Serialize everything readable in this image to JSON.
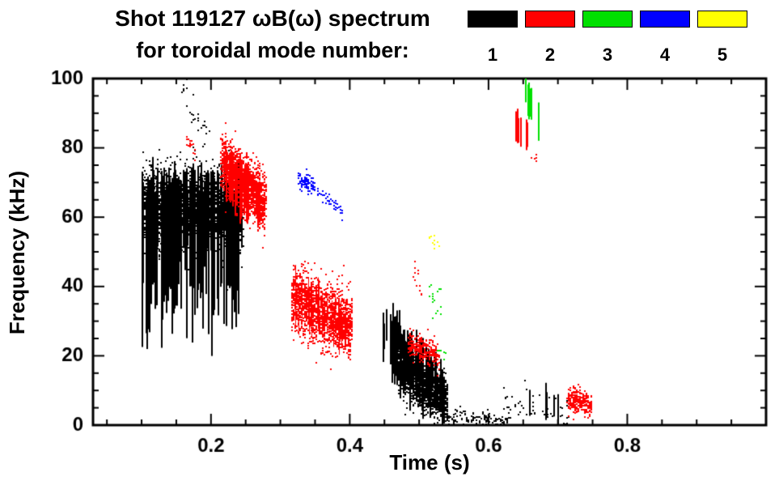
{
  "title": {
    "line1": "Shot 119127 ωB(ω) spectrum",
    "line2": "for toroidal mode number:"
  },
  "legend": {
    "modes": [
      {
        "label": "1",
        "color": "#000000"
      },
      {
        "label": "2",
        "color": "#ff0000"
      },
      {
        "label": "3",
        "color": "#00e000"
      },
      {
        "label": "4",
        "color": "#0000ff"
      },
      {
        "label": "5",
        "color": "#ffff00"
      }
    ]
  },
  "chart_data": {
    "type": "scatter",
    "title": "Shot 119127 ωB(ω) spectrum for toroidal mode number: 1-5",
    "xlabel": "Time (s)",
    "ylabel": "Frequency (kHz)",
    "xlim": [
      0.03,
      1.0
    ],
    "ylim": [
      0,
      100
    ],
    "xticks": [
      0.2,
      0.4,
      0.6,
      0.8
    ],
    "yticks": [
      0,
      20,
      40,
      60,
      80,
      100
    ],
    "xtick_minor_step": 0.05,
    "ytick_minor_step": 5,
    "grid": false,
    "legend_position": "top-right",
    "clusters": [
      {
        "mode": 1,
        "style": "streaks",
        "t": [
          0.1,
          0.245
        ],
        "f_top": [
          70,
          72
        ],
        "f_bot": [
          42,
          40
        ],
        "jt": 3,
        "jb": 9,
        "count": 120,
        "lw": 2
      },
      {
        "mode": 1,
        "style": "blob",
        "t": [
          0.1,
          0.245
        ],
        "f": [
          63,
          61
        ],
        "sigma": 5.5,
        "count": 2600,
        "size": 2
      },
      {
        "mode": 1,
        "style": "blob",
        "t": [
          0.208,
          0.237
        ],
        "f": [
          60,
          59
        ],
        "sigma": 2.5,
        "count": 350,
        "size": 2
      },
      {
        "mode": 1,
        "style": "dots",
        "t": [
          0.158,
          0.192
        ],
        "f": [
          97,
          85
        ],
        "sigma": 3,
        "count": 26,
        "size": 2
      },
      {
        "mode": 2,
        "style": "dots",
        "t": [
          0.162,
          0.178
        ],
        "f": [
          81,
          78
        ],
        "sigma": 1.5,
        "count": 16,
        "size": 2
      },
      {
        "mode": 2,
        "style": "blob",
        "t": [
          0.213,
          0.278
        ],
        "f": [
          76,
          64
        ],
        "sigma": 4,
        "count": 1400,
        "size": 2
      },
      {
        "mode": 2,
        "style": "streaks",
        "t": [
          0.218,
          0.272
        ],
        "f_top": [
          79,
          70
        ],
        "f_bot": [
          67,
          58
        ],
        "jt": 2,
        "jb": 3,
        "count": 28,
        "lw": 2
      },
      {
        "mode": 4,
        "style": "dots",
        "t": [
          0.325,
          0.348
        ],
        "f": [
          71,
          69
        ],
        "sigma": 1.2,
        "count": 90,
        "size": 2
      },
      {
        "mode": 4,
        "style": "dots",
        "t": [
          0.352,
          0.388
        ],
        "f": [
          67.5,
          62
        ],
        "sigma": 1.2,
        "count": 40,
        "size": 2
      },
      {
        "mode": 2,
        "style": "blob",
        "t": [
          0.315,
          0.402
        ],
        "f": [
          37,
          28
        ],
        "sigma": 4.5,
        "count": 1700,
        "size": 2
      },
      {
        "mode": 2,
        "style": "streaks",
        "t": [
          0.318,
          0.395
        ],
        "f_top": [
          44,
          33
        ],
        "f_bot": [
          29,
          25
        ],
        "jt": 2,
        "jb": 2,
        "count": 30,
        "lw": 1
      },
      {
        "mode": 1,
        "style": "streaks",
        "t": [
          0.445,
          0.535
        ],
        "f_top": [
          34,
          16
        ],
        "f_bot": [
          20,
          6
        ],
        "jt": 2,
        "jb": 5,
        "count": 70,
        "lw": 2
      },
      {
        "mode": 1,
        "style": "blob",
        "t": [
          0.468,
          0.54
        ],
        "f": [
          16,
          7
        ],
        "sigma": 3.5,
        "count": 1300,
        "size": 2
      },
      {
        "mode": 1,
        "style": "dots",
        "t": [
          0.535,
          0.63
        ],
        "f": [
          3,
          1
        ],
        "sigma": 1.2,
        "count": 130,
        "size": 2
      },
      {
        "mode": 2,
        "style": "blob",
        "t": [
          0.483,
          0.527
        ],
        "f": [
          24,
          20
        ],
        "sigma": 2,
        "count": 260,
        "size": 2
      },
      {
        "mode": 2,
        "style": "dots",
        "t": [
          0.488,
          0.503
        ],
        "f": [
          46,
          41
        ],
        "sigma": 2.5,
        "count": 12,
        "size": 2
      },
      {
        "mode": 3,
        "style": "dots",
        "t": [
          0.513,
          0.533
        ],
        "f": [
          39,
          34
        ],
        "sigma": 2,
        "count": 16,
        "size": 2
      },
      {
        "mode": 3,
        "style": "dots",
        "t": [
          0.524,
          0.537
        ],
        "f": [
          21,
          20
        ],
        "sigma": 1,
        "count": 6,
        "size": 2
      },
      {
        "mode": 5,
        "style": "dots",
        "t": [
          0.514,
          0.527
        ],
        "f": [
          56,
          52
        ],
        "sigma": 1.5,
        "count": 12,
        "size": 2
      },
      {
        "mode": 3,
        "style": "streaks",
        "t": [
          0.652,
          0.672
        ],
        "f_top": [
          100,
          93
        ],
        "f_bot": [
          93,
          85
        ],
        "jt": 1,
        "jb": 2,
        "count": 8,
        "lw": 2
      },
      {
        "mode": 2,
        "style": "streaks",
        "t": [
          0.638,
          0.658
        ],
        "f_top": [
          91,
          85
        ],
        "f_bot": [
          83,
          80
        ],
        "jt": 1,
        "jb": 1,
        "count": 10,
        "lw": 2
      },
      {
        "mode": 2,
        "style": "dots",
        "t": [
          0.66,
          0.67
        ],
        "f": [
          78,
          76
        ],
        "sigma": 1,
        "count": 5,
        "size": 2
      },
      {
        "mode": 1,
        "style": "dots",
        "t": [
          0.62,
          0.715
        ],
        "f": [
          6,
          4
        ],
        "sigma": 2.5,
        "count": 55,
        "size": 2
      },
      {
        "mode": 1,
        "style": "streaks",
        "t": [
          0.645,
          0.712
        ],
        "f_top": [
          9,
          12
        ],
        "f_bot": [
          2,
          2
        ],
        "jt": 2,
        "jb": 1,
        "count": 5,
        "lw": 2
      },
      {
        "mode": 2,
        "style": "blob",
        "t": [
          0.713,
          0.748
        ],
        "f": [
          8,
          6
        ],
        "sigma": 1.8,
        "count": 260,
        "size": 2
      }
    ]
  }
}
